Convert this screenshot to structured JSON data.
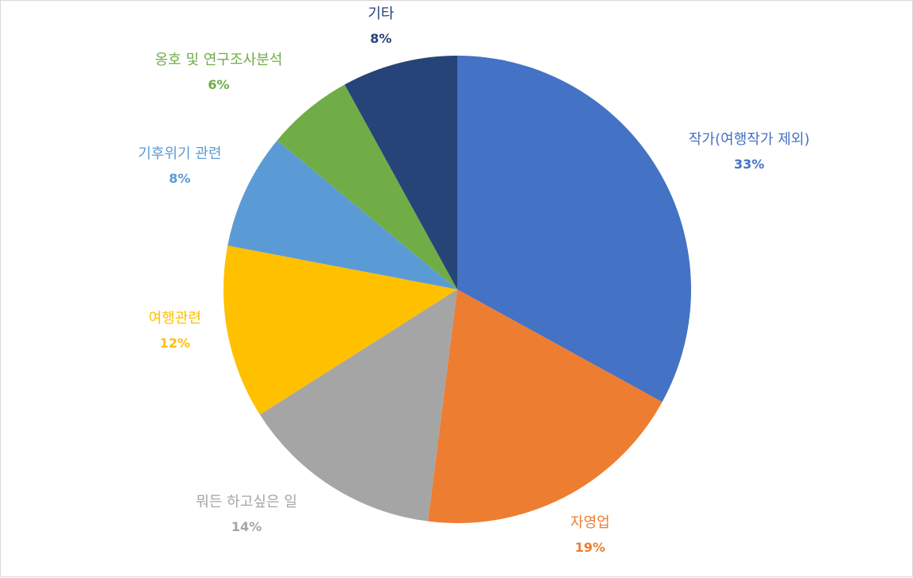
{
  "chart_data": {
    "type": "pie",
    "title": "",
    "slices": [
      {
        "label": "작가(여행작가 제외)",
        "value": 33,
        "percent_label": "33%",
        "color": "#4472C4"
      },
      {
        "label": "자영업",
        "value": 19,
        "percent_label": "19%",
        "color": "#ED7D31"
      },
      {
        "label": "뭐든 하고싶은 일",
        "value": 14,
        "percent_label": "14%",
        "color": "#A5A5A5"
      },
      {
        "label": "여행관련",
        "value": 12,
        "percent_label": "12%",
        "color": "#FFC000"
      },
      {
        "label": "기후위기 관련",
        "value": 8,
        "percent_label": "8%",
        "color": "#5B9BD5"
      },
      {
        "label": "옹호 및 연구조사분석",
        "value": 6,
        "percent_label": "6%",
        "color": "#70AD47"
      },
      {
        "label": "기타",
        "value": 8,
        "percent_label": "8%",
        "color": "#264478"
      }
    ],
    "start_angle": "12 o'clock",
    "direction": "clockwise",
    "legend": "none",
    "data_labels": "outside"
  }
}
